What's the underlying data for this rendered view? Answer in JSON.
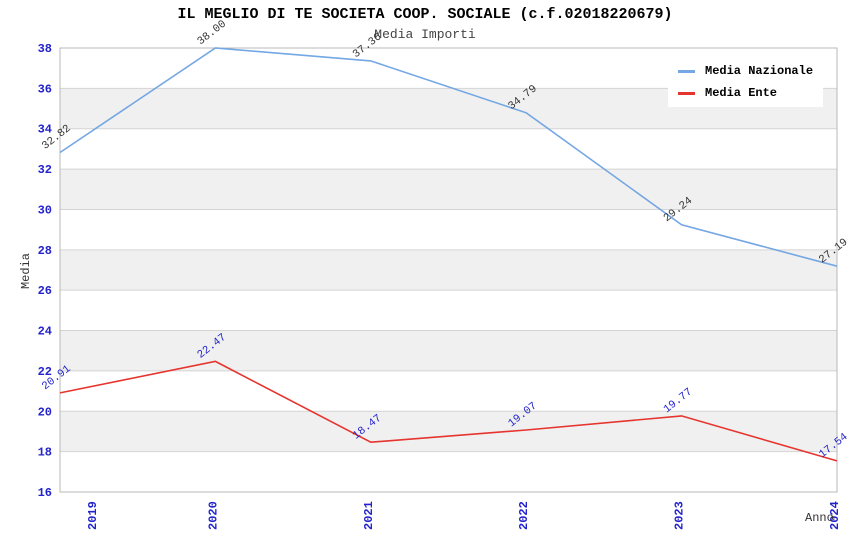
{
  "chart_data": {
    "type": "line",
    "title": "IL MEGLIO DI TE SOCIETA COOP. SOCIALE (c.f.02018220679)",
    "subtitle": "Media Importi",
    "categories": [
      "2019",
      "2020",
      "2021",
      "2022",
      "2023",
      "2024"
    ],
    "xlabel": "Anno",
    "ylabel": "Media",
    "ylim": [
      16,
      38
    ],
    "yticks": [
      16,
      18,
      20,
      22,
      24,
      26,
      28,
      30,
      32,
      34,
      36,
      38
    ],
    "grid": "horizontal-alternating-bands",
    "legend_position": "top-right",
    "series": [
      {
        "name": "Media Nazionale",
        "color": "#74a7e3",
        "label_color": "#333333",
        "values": [
          32.82,
          38.0,
          37.36,
          34.79,
          29.24,
          27.19
        ]
      },
      {
        "name": "Media Ente",
        "color": "#e6342e",
        "label_color": "#2323cc",
        "values": [
          20.91,
          22.47,
          18.47,
          19.07,
          19.77,
          17.54
        ]
      }
    ],
    "tick_color": "#2323cc",
    "band_color": "#f0f0f0",
    "gridline_color": "#d4d4d4"
  }
}
